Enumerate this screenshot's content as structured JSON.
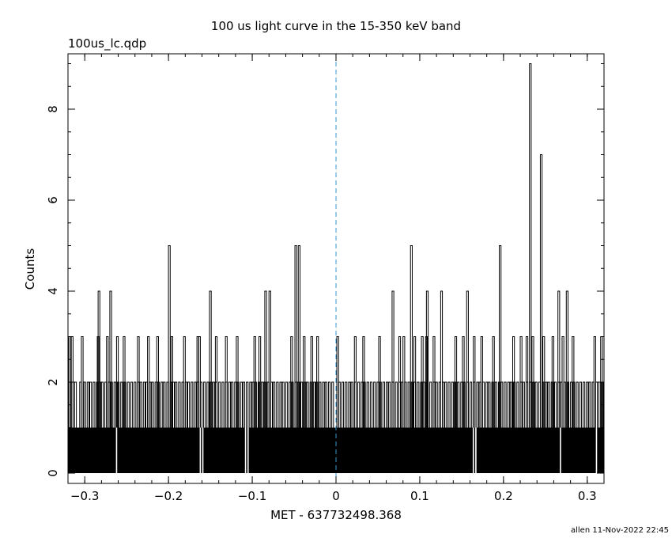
{
  "chart_data": {
    "type": "bar",
    "title": "100 us light curve in the 15-350 keV band",
    "subtitle": "100us_lc.qdp",
    "xlabel": "MET - 637732498.368",
    "ylabel": "Counts",
    "footer": "allen 11-Nov-2022 22:45",
    "xlim": [
      -0.32,
      0.32
    ],
    "ylim": [
      0,
      9.3
    ],
    "xticks": [
      -0.3,
      -0.2,
      -0.1,
      0,
      0.1,
      0.2,
      0.3
    ],
    "xtick_labels": [
      "−0.3",
      "−0.2",
      "−0.1",
      "0",
      "0.1",
      "0.2",
      "0.3"
    ],
    "yticks": [
      0,
      2,
      4,
      6,
      8
    ],
    "ytick_labels": [
      "0",
      "2",
      "4",
      "6",
      "8"
    ],
    "bin_width": 0.0001,
    "baseline_counts": 1,
    "zero_count_bins": [
      -0.262,
      -0.162,
      -0.159,
      -0.108,
      -0.105,
      0.164,
      0.167,
      0.268,
      0.311
    ],
    "count_2_bins": [
      -0.318,
      -0.315,
      -0.311,
      -0.305,
      -0.3,
      -0.296,
      -0.293,
      -0.289,
      -0.285,
      -0.282,
      -0.279,
      -0.275,
      -0.271,
      -0.268,
      -0.264,
      -0.26,
      -0.256,
      -0.252,
      -0.248,
      -0.244,
      -0.24,
      -0.236,
      -0.233,
      -0.229,
      -0.226,
      -0.222,
      -0.219,
      -0.215,
      -0.212,
      -0.208,
      -0.205,
      -0.201,
      -0.197,
      -0.194,
      -0.191,
      -0.187,
      -0.183,
      -0.179,
      -0.176,
      -0.172,
      -0.168,
      -0.165,
      -0.161,
      -0.157,
      -0.153,
      -0.149,
      -0.146,
      -0.143,
      -0.139,
      -0.135,
      -0.131,
      -0.127,
      -0.124,
      -0.12,
      -0.117,
      -0.113,
      -0.11,
      -0.106,
      -0.102,
      -0.099,
      -0.096,
      -0.092,
      -0.088,
      -0.085,
      -0.081,
      -0.077,
      -0.074,
      -0.07,
      -0.066,
      -0.063,
      -0.059,
      -0.055,
      -0.052,
      -0.048,
      -0.045,
      -0.041,
      -0.037,
      -0.034,
      -0.03,
      -0.026,
      -0.023,
      -0.019,
      -0.015,
      -0.012,
      -0.008,
      -0.004,
      0.004,
      0.008,
      0.012,
      0.016,
      0.019,
      0.023,
      0.027,
      0.031,
      0.034,
      0.038,
      0.042,
      0.046,
      0.05,
      0.053,
      0.057,
      0.061,
      0.064,
      0.068,
      0.072,
      0.076,
      0.079,
      0.083,
      0.087,
      0.091,
      0.094,
      0.098,
      0.102,
      0.105,
      0.109,
      0.113,
      0.117,
      0.12,
      0.124,
      0.128,
      0.131,
      0.135,
      0.139,
      0.142,
      0.146,
      0.15,
      0.153,
      0.157,
      0.161,
      0.165,
      0.169,
      0.172,
      0.176,
      0.18,
      0.183,
      0.187,
      0.191,
      0.195,
      0.198,
      0.202,
      0.206,
      0.209,
      0.213,
      0.217,
      0.221,
      0.224,
      0.228,
      0.232,
      0.236,
      0.239,
      0.243,
      0.247,
      0.251,
      0.254,
      0.258,
      0.262,
      0.266,
      0.269,
      0.273,
      0.277,
      0.281,
      0.284,
      0.288,
      0.292,
      0.296,
      0.3,
      0.303,
      0.307,
      0.311,
      0.315,
      0.318
    ],
    "count_3_bins": [
      -0.318,
      -0.315,
      -0.303,
      -0.284,
      -0.273,
      -0.261,
      -0.253,
      -0.236,
      -0.224,
      -0.213,
      -0.196,
      -0.181,
      -0.165,
      -0.163,
      -0.143,
      -0.131,
      -0.118,
      -0.097,
      -0.091,
      -0.053,
      -0.038,
      -0.029,
      -0.022,
      0.002,
      0.023,
      0.033,
      0.052,
      0.076,
      0.081,
      0.094,
      0.103,
      0.108,
      0.117,
      0.143,
      0.152,
      0.165,
      0.174,
      0.188,
      0.212,
      0.221,
      0.228,
      0.235,
      0.248,
      0.259,
      0.271,
      0.283,
      0.309,
      0.317
    ],
    "spikes": [
      {
        "x": -0.283,
        "counts": 4
      },
      {
        "x": -0.269,
        "counts": 4
      },
      {
        "x": -0.199,
        "counts": 5
      },
      {
        "x": -0.15,
        "counts": 4
      },
      {
        "x": -0.084,
        "counts": 4
      },
      {
        "x": -0.079,
        "counts": 4
      },
      {
        "x": -0.048,
        "counts": 5
      },
      {
        "x": -0.044,
        "counts": 5
      },
      {
        "x": 0.068,
        "counts": 4
      },
      {
        "x": 0.09,
        "counts": 5
      },
      {
        "x": 0.109,
        "counts": 4
      },
      {
        "x": 0.126,
        "counts": 4
      },
      {
        "x": 0.157,
        "counts": 4
      },
      {
        "x": 0.196,
        "counts": 5
      },
      {
        "x": 0.232,
        "counts": 9
      },
      {
        "x": 0.245,
        "counts": 7
      },
      {
        "x": 0.266,
        "counts": 4
      },
      {
        "x": 0.276,
        "counts": 4
      }
    ],
    "reference_line": {
      "x": 0,
      "color": "#3399cc"
    },
    "bar_color": "#000000",
    "grid": false
  }
}
